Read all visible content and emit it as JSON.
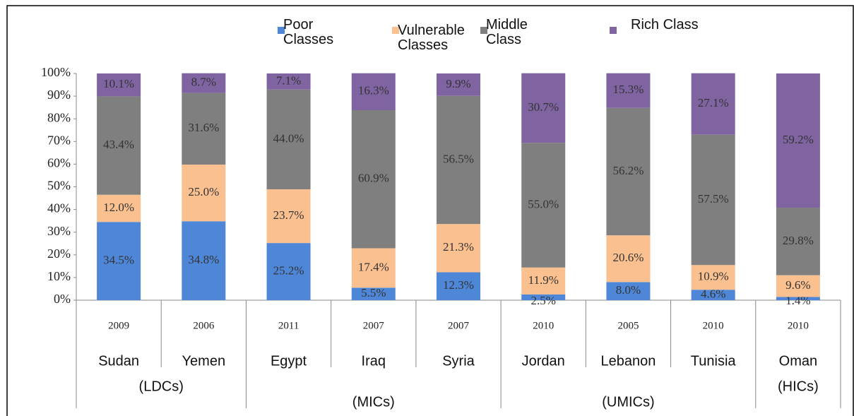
{
  "chart_data": {
    "type": "stacked_bar",
    "categories": [
      "Sudan",
      "Yemen",
      "Egypt",
      "Iraq",
      "Syria",
      "Jordan",
      "Lebanon",
      "Tunisia",
      "Oman"
    ],
    "years": [
      "2009",
      "2006",
      "2011",
      "2007",
      "2007",
      "2010",
      "2005",
      "2010",
      "2010"
    ],
    "groups": [
      {
        "label": "(LDCs)",
        "count": 2
      },
      {
        "label": "(MICs)",
        "count": 3
      },
      {
        "label": "(UMICs)",
        "count": 3
      },
      {
        "label": "(HICs)",
        "count": 1
      }
    ],
    "series": [
      {
        "name": "Poor Classes",
        "color": "#4f87d8",
        "values": [
          34.5,
          34.8,
          25.2,
          5.5,
          12.3,
          2.5,
          8.0,
          4.6,
          1.4
        ],
        "value_labels": [
          "34.5%",
          "34.8%",
          "25.2%",
          "5.5%",
          "12.3%",
          "2.5%",
          "8.0%",
          "4.6%",
          "1.4%"
        ]
      },
      {
        "name": "Vulnerable Classes",
        "color": "#fac090",
        "values": [
          12.0,
          25.0,
          23.7,
          17.4,
          21.3,
          11.9,
          20.6,
          10.9,
          9.6
        ],
        "value_labels": [
          "12.0%",
          "25.0%",
          "23.7%",
          "17.4%",
          "21.3%",
          "11.9%",
          "20.6%",
          "10.9%",
          "9.6%"
        ]
      },
      {
        "name": "Middle Class",
        "color": "#7f7f7f",
        "values": [
          43.4,
          31.6,
          44.0,
          60.9,
          56.5,
          55.0,
          56.2,
          57.5,
          29.8
        ],
        "value_labels": [
          "43.4%",
          "31.6%",
          "44.0%",
          "60.9%",
          "56.5%",
          "55.0%",
          "56.2%",
          "57.5%",
          "29.8%"
        ]
      },
      {
        "name": "Rich Class",
        "color": "#8064a2",
        "values": [
          10.1,
          8.7,
          7.1,
          16.3,
          9.9,
          30.7,
          15.3,
          27.1,
          59.2
        ],
        "value_labels": [
          "10.1%",
          "8.7%",
          "7.1%",
          "16.3%",
          "9.9%",
          "30.7%",
          "15.3%",
          "27.1%",
          "59.2%"
        ]
      }
    ],
    "ylim": [
      0,
      100
    ],
    "yticks": [
      {
        "value": 0,
        "label": "0%"
      },
      {
        "value": 10,
        "label": "10%"
      },
      {
        "value": 20,
        "label": "20%"
      },
      {
        "value": 30,
        "label": "30%"
      },
      {
        "value": 40,
        "label": "40%"
      },
      {
        "value": 50,
        "label": "50%"
      },
      {
        "value": 60,
        "label": "60%"
      },
      {
        "value": 70,
        "label": "70%"
      },
      {
        "value": 80,
        "label": "80%"
      },
      {
        "value": 90,
        "label": "90%"
      },
      {
        "value": 100,
        "label": "100%"
      }
    ],
    "legend_position": "top"
  }
}
